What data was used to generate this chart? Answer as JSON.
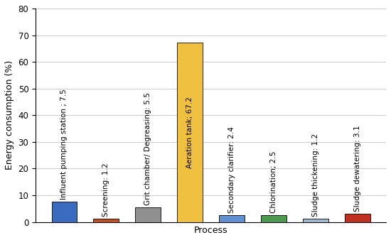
{
  "categories": [
    "Influent pumping station ; 7.5",
    "Screening: 1.2",
    "Grit chamber/ Degreasing: 5.5",
    "Aeration tank; 67.2",
    "Secondary clarifier: 2.4",
    "Chlorination; 2.5",
    "Sludge thickening: 1.2",
    "Sludge dewatering: 3.1"
  ],
  "values": [
    7.5,
    1.2,
    5.5,
    67.2,
    2.4,
    2.5,
    1.2,
    3.1
  ],
  "bar_colors": [
    "#3A6BBF",
    "#C05020",
    "#909090",
    "#F0C040",
    "#6090D0",
    "#4C9A50",
    "#A0B8D0",
    "#C03020"
  ],
  "xlabel": "Process",
  "ylabel": "Energy consumption (%)",
  "ylim": [
    0,
    80
  ],
  "yticks": [
    0,
    10,
    20,
    30,
    40,
    50,
    60,
    70,
    80
  ],
  "background_color": "#ffffff",
  "grid_color": "#cccccc",
  "label_fontsize": 7.5,
  "axis_label_fontsize": 9,
  "tick_fontsize": 8.5
}
